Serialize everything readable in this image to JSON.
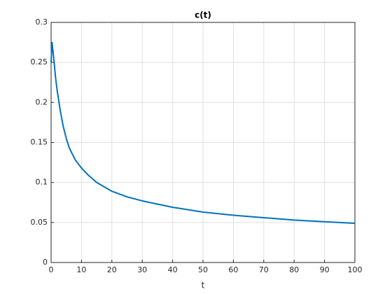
{
  "chart_data": {
    "type": "line",
    "title": "c(t)",
    "x_label": "t",
    "x": [
      0,
      0.3,
      0.6,
      1,
      1.5,
      2,
      3,
      4,
      5,
      6,
      8,
      10,
      12,
      15,
      20,
      25,
      30,
      40,
      50,
      60,
      70,
      80,
      90,
      100
    ],
    "values": [
      0.25,
      0.275,
      0.265,
      0.25,
      0.23,
      0.215,
      0.19,
      0.17,
      0.155,
      0.143,
      0.128,
      0.118,
      0.11,
      0.1,
      0.089,
      0.082,
      0.077,
      0.069,
      0.063,
      0.059,
      0.056,
      0.053,
      0.051,
      0.049
    ],
    "color": "#0072bd",
    "xlim": [
      0,
      100
    ],
    "xticks": [
      0,
      10,
      20,
      30,
      40,
      50,
      60,
      70,
      80,
      90,
      100
    ],
    "ylim": [
      0,
      0.3
    ],
    "yticks": [
      0,
      0.05,
      0.1,
      0.15,
      0.2,
      0.25,
      0.3
    ],
    "grid": true
  }
}
